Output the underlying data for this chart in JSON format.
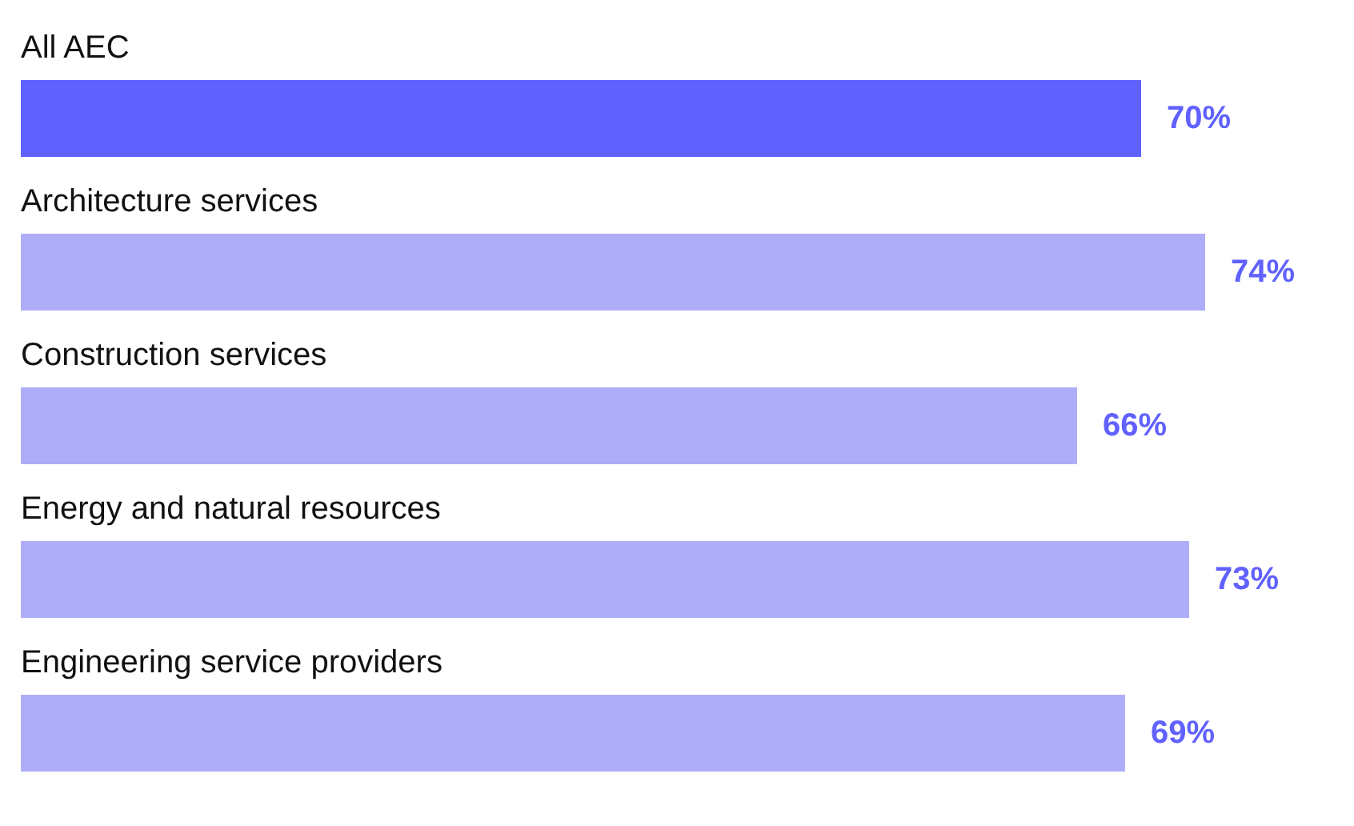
{
  "chart_data": {
    "type": "bar",
    "orientation": "horizontal",
    "categories": [
      "All AEC",
      "Architecture services",
      "Construction services",
      "Energy and natural resources",
      "Engineering service providers"
    ],
    "values": [
      70,
      74,
      66,
      73,
      69
    ],
    "colors": [
      "#6161ff",
      "#aeaef8",
      "#aeaef8",
      "#aeaef8",
      "#aeaef8"
    ],
    "data_labels": true,
    "value_labels": [
      "70%",
      "74%",
      "66%",
      "73%",
      "69%"
    ]
  }
}
